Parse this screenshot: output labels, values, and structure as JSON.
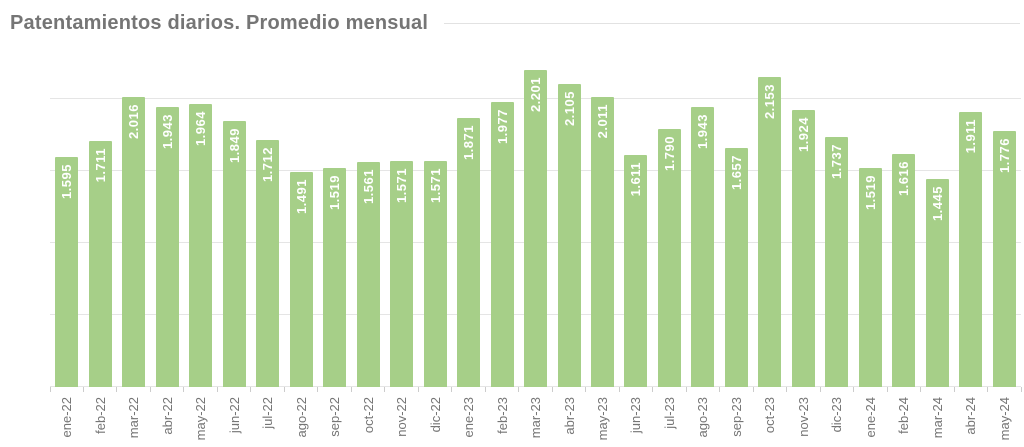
{
  "header": {
    "title": "Patentamientos diarios. Promedio mensual"
  },
  "chart_data": {
    "type": "bar",
    "title": "Patentamientos diarios. Promedio mensual",
    "categories": [
      "ene-22",
      "feb-22",
      "mar-22",
      "abr-22",
      "may-22",
      "jun-22",
      "jul-22",
      "ago-22",
      "sep-22",
      "oct-22",
      "nov-22",
      "dic-22",
      "ene-23",
      "feb-23",
      "mar-23",
      "abr-23",
      "may-23",
      "jun-23",
      "jul-23",
      "ago-23",
      "sep-23",
      "oct-23",
      "nov-23",
      "dic-23",
      "ene-24",
      "feb-24",
      "mar-24",
      "abr-24",
      "may-24"
    ],
    "values": [
      1595,
      1711,
      2016,
      1943,
      1964,
      1849,
      1712,
      1491,
      1519,
      1561,
      1571,
      1571,
      1871,
      1977,
      2201,
      2105,
      2011,
      1611,
      1790,
      1943,
      1657,
      2153,
      1924,
      1737,
      1519,
      1616,
      1445,
      1911,
      1776
    ],
    "value_labels": [
      "1.595",
      "1.711",
      "2.016",
      "1.943",
      "1.964",
      "1.849",
      "1.712",
      "1.491",
      "1.519",
      "1.561",
      "1.571",
      "1.571",
      "1.871",
      "1.977",
      "2.201",
      "2.105",
      "2.011",
      "1.611",
      "1.790",
      "1.943",
      "1.657",
      "2.153",
      "1.924",
      "1.737",
      "1.519",
      "1.616",
      "1.445",
      "1.911",
      "1.776"
    ],
    "xlabel": "",
    "ylabel": "",
    "ylim": [
      0,
      2300
    ],
    "gridlines": [
      0,
      500,
      1000,
      1500,
      2000
    ],
    "grid": "horizontal-only",
    "legend": "none",
    "value_label_position": "inside-top-rotated",
    "x_label_rotation": "vertical"
  },
  "colors": {
    "bar": "#a6cf88",
    "value_label": "#ffffff",
    "axis_text": "#757575",
    "title": "#757575",
    "gridline": "#e5e5e5",
    "tick": "#cccccc",
    "title_rule": "#e2e2e2",
    "background": "#ffffff"
  }
}
